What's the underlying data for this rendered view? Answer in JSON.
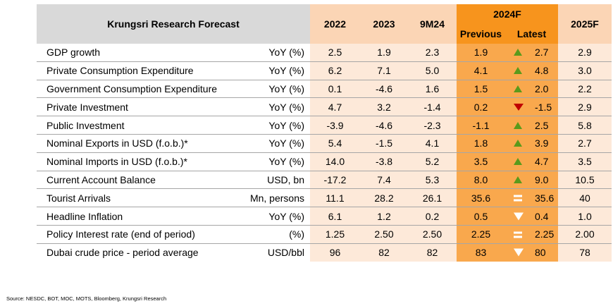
{
  "header": {
    "title": "Krungsri Research Forecast",
    "col_2022": "2022",
    "col_2023": "2023",
    "col_9m24": "9M24",
    "col_2024f": "2024F",
    "col_previous": "Previous",
    "col_latest": "Latest",
    "col_2025f": "2025F"
  },
  "rows": [
    {
      "indicator": "GDP growth",
      "unit": "YoY (%)",
      "y2022": "2.5",
      "y2023": "1.9",
      "m9_24": "2.3",
      "previous": "1.9",
      "latest": "2.7",
      "arrow": "up",
      "y2025": "2.9"
    },
    {
      "indicator": "Private Consumption Expenditure",
      "unit": "YoY (%)",
      "y2022": "6.2",
      "y2023": "7.1",
      "m9_24": "5.0",
      "previous": "4.1",
      "latest": "4.8",
      "arrow": "up",
      "y2025": "3.0"
    },
    {
      "indicator": "Government Consumption Expenditure",
      "unit": "YoY (%)",
      "y2022": "0.1",
      "y2023": "-4.6",
      "m9_24": "1.6",
      "previous": "1.5",
      "latest": "2.0",
      "arrow": "up",
      "y2025": "2.2"
    },
    {
      "indicator": "Private Investment",
      "unit": "YoY (%)",
      "y2022": "4.7",
      "y2023": "3.2",
      "m9_24": "-1.4",
      "previous": "0.2",
      "latest": "-1.5",
      "arrow": "down-red",
      "y2025": "2.9"
    },
    {
      "indicator": "Public Investment",
      "unit": "YoY (%)",
      "y2022": "-3.9",
      "y2023": "-4.6",
      "m9_24": "-2.3",
      "previous": "-1.1",
      "latest": "2.5",
      "arrow": "up",
      "y2025": "5.8"
    },
    {
      "indicator": "Nominal Exports in USD (f.o.b.)*",
      "unit": "YoY (%)",
      "y2022": "5.4",
      "y2023": "-1.5",
      "m9_24": "4.1",
      "previous": "1.8",
      "latest": "3.9",
      "arrow": "up",
      "y2025": "2.7"
    },
    {
      "indicator": "Nominal Imports in USD (f.o.b.)*",
      "unit": "YoY (%)",
      "y2022": "14.0",
      "y2023": "-3.8",
      "m9_24": "5.2",
      "previous": "3.5",
      "latest": "4.7",
      "arrow": "up",
      "y2025": "3.5"
    },
    {
      "indicator": "Current Account Balance",
      "unit": "USD, bn",
      "y2022": "-17.2",
      "y2023": "7.4",
      "m9_24": "5.3",
      "previous": "8.0",
      "latest": "9.0",
      "arrow": "up",
      "y2025": "10.5"
    },
    {
      "indicator": "Tourist Arrivals",
      "unit": "Mn, persons",
      "y2022": "11.1",
      "y2023": "28.2",
      "m9_24": "26.1",
      "previous": "35.6",
      "latest": "35.6",
      "arrow": "equal",
      "y2025": "40"
    },
    {
      "indicator": "Headline Inflation",
      "unit": "YoY (%)",
      "y2022": "6.1",
      "y2023": "1.2",
      "m9_24": "0.2",
      "previous": "0.5",
      "latest": "0.4",
      "arrow": "down-white",
      "y2025": "1.0"
    },
    {
      "indicator": "Policy Interest rate (end of period)",
      "unit": "(%)",
      "y2022": "1.25",
      "y2023": "2.50",
      "m9_24": "2.50",
      "previous": "2.25",
      "latest": "2.25",
      "arrow": "equal",
      "y2025": "2.00"
    },
    {
      "indicator": "Dubai crude price - period average",
      "unit": "USD/bbl",
      "y2022": "96",
      "y2023": "82",
      "m9_24": "82",
      "previous": "83",
      "latest": "80",
      "arrow": "down-white",
      "y2025": "78"
    }
  ],
  "source": "Source: NESDC, BOT, MOC, MOTS, Bloomberg, Krungsri Research",
  "colors": {
    "header_gray": "#d9d9d9",
    "header_peach": "#fbd5b5",
    "body_peach": "#fde9d9",
    "orange": "#f9a84d",
    "header_orange": "#f7941d",
    "arrow_up": "#5a9a1b",
    "arrow_down": "#c00000"
  }
}
